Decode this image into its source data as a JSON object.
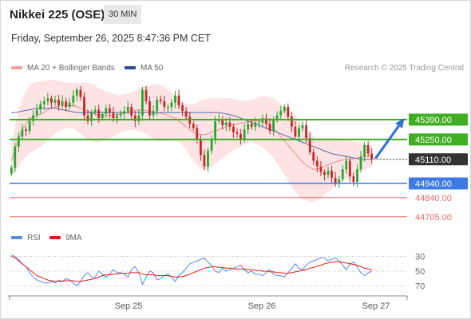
{
  "header": {
    "title": "Nikkei 225 (OSE)",
    "interval": "30 MIN",
    "datetime": "Friday, September 26, 2025 8:47:36 PM CET"
  },
  "legend": {
    "bollinger": "MA 20 + Bollinger Bands",
    "ma50": "MA 50",
    "credit": "Research © 2025 Trading Central"
  },
  "rsi_legend": {
    "rsi": "RSI",
    "ma9": "9MA"
  },
  "colors": {
    "candle_up": "#22a833",
    "candle_down": "#c62828",
    "bollinger_band": "#fde3e3",
    "ma20": "#f08b8b",
    "ma50": "#5868a8",
    "resistance": "#3fae21",
    "current": "#333333",
    "support": "#3c7ae8",
    "support_faint": "#ef6a6a",
    "arrow": "#2f6fd0",
    "rsi": "#5b8ae0",
    "rsi_ma": "#e01b1b"
  },
  "chart_data": [
    {
      "type": "candlestick",
      "x_labels": [
        "Sep 25",
        "Sep 26",
        "Sep 27"
      ],
      "ylim": [
        44600,
        45600
      ],
      "levels": [
        {
          "value": 45390,
          "label": "45390.00",
          "kind": "resistance"
        },
        {
          "value": 45250,
          "label": "45250.00",
          "kind": "resistance"
        },
        {
          "value": 45110,
          "label": "45110.00",
          "kind": "current"
        },
        {
          "value": 44940,
          "label": "44940.00",
          "kind": "support"
        },
        {
          "value": 44840,
          "label": "44840.00",
          "kind": "support-minor"
        },
        {
          "value": 44705,
          "label": "44705.00",
          "kind": "support-minor"
        }
      ],
      "projection": {
        "from": 45110,
        "to": 45390
      },
      "close": [
        45050,
        45200,
        45270,
        45320,
        45310,
        45380,
        45420,
        45460,
        45500,
        45520,
        45540,
        45510,
        45530,
        45490,
        45520,
        45480,
        45510,
        45560,
        45600,
        45550,
        45420,
        45380,
        45440,
        45460,
        45400,
        45430,
        45470,
        45440,
        45400,
        45420,
        45430,
        45450,
        45480,
        45420,
        45380,
        45420,
        45600,
        45520,
        45420,
        45450,
        45530,
        45520,
        45480,
        45480,
        45510,
        45560,
        45490,
        45450,
        45410,
        45360,
        45330,
        45250,
        45140,
        45060,
        45170,
        45250,
        45380,
        45390,
        45350,
        45370,
        45340,
        45300,
        45290,
        45250,
        45320,
        45360,
        45340,
        45370,
        45370,
        45400,
        45360,
        45310,
        45390,
        45420,
        45450,
        45480,
        45410,
        45340,
        45270,
        45330,
        45350,
        45260,
        45160,
        45100,
        45060,
        45020,
        45000,
        45030,
        44980,
        44940,
        44970,
        45040,
        45100,
        44990,
        44950,
        45040,
        45130,
        45210,
        45150,
        45110
      ],
      "ma20": [
        45100,
        45180,
        45260,
        45320,
        45360,
        45390,
        45410,
        45420,
        45430,
        45440,
        45460,
        45470,
        45480,
        45485,
        45490,
        45490,
        45490,
        45490,
        45480,
        45470,
        45460,
        45450,
        45440,
        45430,
        45420,
        45420,
        45420,
        45420,
        45420,
        45425,
        45430,
        45440,
        45445,
        45450,
        45455,
        45460,
        45460,
        45455,
        45450,
        45445,
        45440,
        45435,
        45430,
        45420,
        45410,
        45400,
        45380,
        45360,
        45340,
        45320,
        45300,
        45290,
        45285,
        45285,
        45290,
        45300,
        45310,
        45320,
        45330,
        45340,
        45350,
        45355,
        45360,
        45365,
        45370,
        45375,
        45380,
        45380,
        45380,
        45375,
        45365,
        45350,
        45330,
        45300,
        45270,
        45240,
        45210,
        45180,
        45150,
        45120,
        45090,
        45070,
        45050,
        45040,
        45040,
        45050,
        45060,
        45070,
        45080,
        45090,
        45100,
        45105,
        45110,
        45110,
        45115,
        45120,
        45125,
        45130,
        45130,
        45130
      ],
      "ma50": [
        45440,
        45440,
        45445,
        45450,
        45455,
        45460,
        45465,
        45470,
        45470,
        45470,
        45470,
        45470,
        45470,
        45465,
        45460,
        45455,
        45450,
        45445,
        45440,
        45440,
        45440,
        45440,
        45440,
        45440,
        45440,
        45440,
        45440,
        45440,
        45440,
        45440,
        45440,
        45440,
        45440,
        45440,
        45440,
        45440,
        45440,
        45440,
        45440,
        45440,
        45440,
        45440,
        45440,
        45440,
        45440,
        45440,
        45440,
        45440,
        45440,
        45440,
        45440,
        45440,
        45440,
        45440,
        45440,
        45440,
        45440,
        45440,
        45435,
        45430,
        45425,
        45420,
        45410,
        45400,
        45390,
        45380,
        45370,
        45360,
        45350,
        45340,
        45330,
        45320,
        45310,
        45300,
        45290,
        45280,
        45270,
        45260,
        45250,
        45240,
        45230,
        45220,
        45210,
        45200,
        45190,
        45180,
        45170,
        45160,
        45150,
        45145,
        45140,
        45135,
        45130,
        45125,
        45120,
        45115,
        45110,
        45110,
        45110,
        45110
      ],
      "band_width": [
        120,
        160,
        200,
        220,
        230,
        240,
        240,
        240,
        230,
        220,
        210,
        200,
        190,
        180,
        170,
        160,
        160,
        160,
        170,
        180,
        190,
        200,
        200,
        200,
        190,
        180,
        170,
        160,
        150,
        140,
        130,
        130,
        130,
        130,
        140,
        150,
        160,
        170,
        180,
        190,
        200,
        200,
        190,
        180,
        170,
        160,
        150,
        150,
        160,
        180,
        200,
        220,
        240,
        250,
        250,
        240,
        230,
        220,
        210,
        200,
        190,
        180,
        170,
        160,
        150,
        150,
        150,
        160,
        170,
        180,
        190,
        200,
        210,
        220,
        230,
        240,
        250,
        260,
        270,
        270,
        260,
        250,
        240,
        230,
        220,
        210,
        200,
        190,
        180,
        170,
        160,
        150,
        140,
        130,
        120,
        110,
        100,
        90,
        80,
        80
      ]
    },
    {
      "type": "line",
      "name": "RSI",
      "ylim": [
        20,
        80
      ],
      "ticks": [
        {
          "value": 70,
          "label": "70"
        },
        {
          "value": 50,
          "label": "50"
        },
        {
          "value": 30,
          "label": "30"
        }
      ],
      "series": [
        {
          "name": "RSI",
          "values": [
            28,
            30,
            34,
            40,
            44,
            52,
            58,
            62,
            64,
            66,
            66,
            64,
            66,
            62,
            64,
            60,
            62,
            66,
            70,
            64,
            56,
            52,
            58,
            58,
            50,
            54,
            58,
            54,
            48,
            52,
            52,
            54,
            58,
            48,
            44,
            52,
            68,
            58,
            50,
            52,
            62,
            60,
            56,
            54,
            58,
            64,
            56,
            52,
            46,
            40,
            38,
            36,
            34,
            32,
            38,
            42,
            50,
            52,
            46,
            50,
            48,
            46,
            44,
            42,
            48,
            52,
            50,
            54,
            54,
            56,
            52,
            48,
            54,
            56,
            56,
            58,
            52,
            46,
            40,
            46,
            48,
            42,
            38,
            36,
            34,
            32,
            32,
            36,
            34,
            32,
            36,
            42,
            48,
            40,
            38,
            44,
            52,
            56,
            52,
            50
          ]
        },
        {
          "name": "9MA",
          "values": [
            30,
            32,
            36,
            40,
            44,
            48,
            52,
            56,
            58,
            60,
            62,
            63,
            64,
            64,
            64,
            63,
            63,
            63,
            64,
            64,
            63,
            62,
            61,
            60,
            58,
            56,
            55,
            55,
            54,
            54,
            53,
            53,
            53,
            52,
            52,
            52,
            54,
            55,
            55,
            55,
            56,
            56,
            56,
            56,
            57,
            58,
            58,
            57,
            56,
            54,
            52,
            50,
            48,
            46,
            45,
            44,
            44,
            45,
            45,
            46,
            46,
            47,
            47,
            47,
            47,
            48,
            48,
            49,
            49,
            50,
            50,
            51,
            51,
            52,
            52,
            53,
            53,
            52,
            51,
            50,
            49,
            48,
            46,
            45,
            43,
            42,
            40,
            39,
            38,
            37,
            37,
            38,
            39,
            40,
            41,
            42,
            44,
            46,
            47,
            48
          ]
        }
      ]
    }
  ]
}
